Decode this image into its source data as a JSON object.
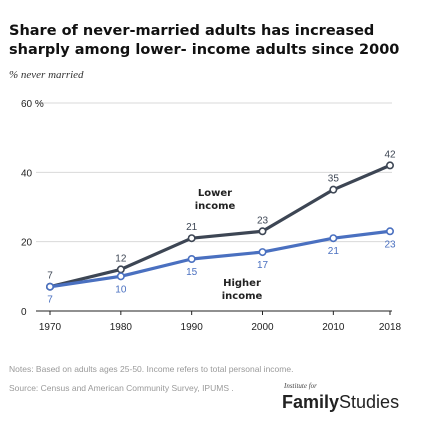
{
  "title": "Share of never-married adults has increased sharply among lower- income adults since 2000",
  "subtitle": "% never married",
  "notes": "Notes: Based on adults ages 25-50. Income refers to total personal income.",
  "source": "Source: Census and American Community Survey, IPUMS .",
  "logo": {
    "small": "Institute for",
    "word1": "Family",
    "word2": "Studies"
  },
  "chart_data": {
    "type": "line",
    "x": [
      1970,
      1980,
      1990,
      2000,
      2010,
      2018
    ],
    "x_tick_labels": [
      "1970",
      "1980",
      "1990",
      "2000",
      "2010",
      "2018"
    ],
    "ylim": [
      0,
      60
    ],
    "y_ticks": [
      0,
      20,
      40,
      60
    ],
    "y_tick_labels": [
      "0",
      "20",
      "40",
      "60 %"
    ],
    "grid": true,
    "series": [
      {
        "name": "Lower income",
        "label_lines": [
          "Lower",
          "income"
        ],
        "values": [
          7,
          12,
          21,
          23,
          35,
          42
        ],
        "color": "#3d4654"
      },
      {
        "name": "Higher income",
        "label_lines": [
          "Higher",
          "income"
        ],
        "values": [
          7,
          10,
          15,
          17,
          21,
          23
        ],
        "color": "#4a70c0"
      }
    ]
  }
}
